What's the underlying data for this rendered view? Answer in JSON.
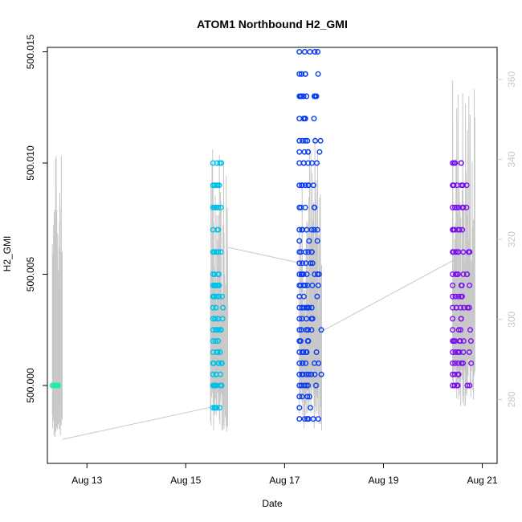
{
  "chart_data": {
    "type": "scatter",
    "title": "ATOM1 Northbound H2_GMI",
    "xlabel": "Date",
    "ylabel": "H2_GMI",
    "y2label": "",
    "xlim": [
      12.2,
      21.3
    ],
    "ylim": [
      499.9965,
      500.0152
    ],
    "y2lim": [
      264,
      368
    ],
    "x_ticks": [
      {
        "value": 13,
        "label": "Aug 13"
      },
      {
        "value": 15,
        "label": "Aug 15"
      },
      {
        "value": 17,
        "label": "Aug 17"
      },
      {
        "value": 19,
        "label": "Aug 19"
      },
      {
        "value": 21,
        "label": "Aug 21"
      }
    ],
    "y_ticks": [
      {
        "value": 500.0,
        "label": "500.000"
      },
      {
        "value": 500.005,
        "label": "500.005"
      },
      {
        "value": 500.01,
        "label": "500.010"
      },
      {
        "value": 500.015,
        "label": "500.015"
      }
    ],
    "y2_ticks": [
      {
        "value": 280,
        "label": "280"
      },
      {
        "value": 300,
        "label": "300"
      },
      {
        "value": 320,
        "label": "320"
      },
      {
        "value": 340,
        "label": "340"
      },
      {
        "value": 360,
        "label": "360"
      }
    ],
    "grid": false,
    "colors": {
      "day12": "#19f0a0",
      "day15": "#00c0e8",
      "day17": "#0a3cf5",
      "day20": "#7a10f0",
      "secondary_line": "#c8c8c8"
    },
    "series": [
      {
        "color_key": "day12",
        "x_range": [
          12.3,
          12.5
        ],
        "y": [
          500.0
        ]
      },
      {
        "color_key": "day15",
        "x_range": [
          15.55,
          15.8
        ],
        "y": [
          499.999,
          500.0,
          500.0005,
          500.001,
          500.0015,
          500.002,
          500.0025,
          500.003,
          500.0035,
          500.004,
          500.0045,
          500.005,
          500.006,
          500.007,
          500.008,
          500.009,
          500.01
        ]
      },
      {
        "color_key": "day17",
        "x_range": [
          17.3,
          17.75
        ],
        "y": [
          499.9985,
          499.999,
          499.9995,
          500.0,
          500.0005,
          500.001,
          500.0015,
          500.002,
          500.0025,
          500.003,
          500.0035,
          500.004,
          500.0045,
          500.005,
          500.0055,
          500.006,
          500.0065,
          500.007,
          500.008,
          500.009,
          500.01,
          500.0105,
          500.011,
          500.012,
          500.013,
          500.014,
          500.015
        ]
      },
      {
        "color_key": "day20",
        "x_range": [
          20.4,
          20.8
        ],
        "y": [
          500.0,
          500.0005,
          500.001,
          500.0015,
          500.002,
          500.0025,
          500.003,
          500.0035,
          500.004,
          500.0045,
          500.005,
          500.006,
          500.007,
          500.008,
          500.009,
          500.01
        ]
      }
    ],
    "secondary_series": {
      "bursts": [
        {
          "x_range": [
            12.3,
            12.5
          ],
          "low": 270,
          "high": 343
        },
        {
          "x_range": [
            15.5,
            15.85
          ],
          "low": 272,
          "high": 346
        },
        {
          "x_range": [
            17.3,
            17.75
          ],
          "low": 272,
          "high": 347
        },
        {
          "x_range": [
            20.4,
            20.85
          ],
          "low": 278,
          "high": 362
        }
      ],
      "connectors": [
        {
          "x": [
            12.5,
            15.5
          ],
          "y": [
            270,
            278
          ]
        },
        {
          "x": [
            15.85,
            17.35
          ],
          "y": [
            318,
            314
          ]
        },
        {
          "x": [
            17.75,
            20.45
          ],
          "y": [
            297,
            315
          ]
        }
      ]
    }
  }
}
